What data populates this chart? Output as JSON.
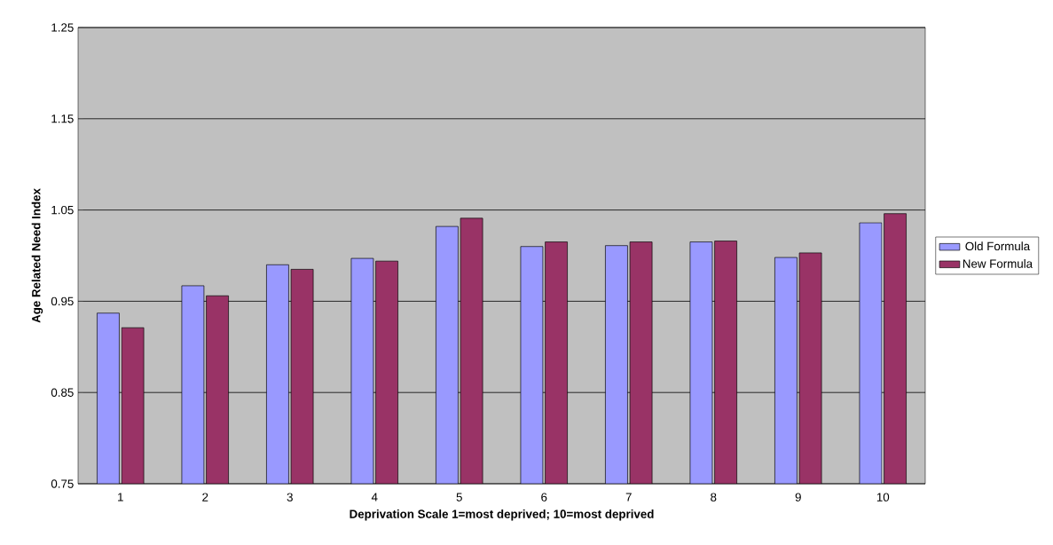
{
  "chart_data": {
    "type": "bar",
    "xlabel": "Deprivation Scale 1=most deprived; 10=most deprived",
    "ylabel": "Age Related Need Index",
    "categories": [
      "1",
      "2",
      "3",
      "4",
      "5",
      "6",
      "7",
      "8",
      "9",
      "10"
    ],
    "series": [
      {
        "name": "Old Formula",
        "color": "#9999ff",
        "values": [
          0.937,
          0.967,
          0.99,
          0.997,
          1.032,
          1.01,
          1.011,
          1.015,
          0.998,
          1.036
        ]
      },
      {
        "name": "New Formula",
        "color": "#993366",
        "values": [
          0.921,
          0.956,
          0.985,
          0.994,
          1.041,
          1.015,
          1.015,
          1.016,
          1.003,
          1.046
        ]
      }
    ],
    "ylim": [
      0.75,
      1.25
    ],
    "yticks": [
      0.75,
      0.85,
      0.95,
      1.05,
      1.15,
      1.25
    ],
    "grid": "y",
    "legend": "right"
  }
}
